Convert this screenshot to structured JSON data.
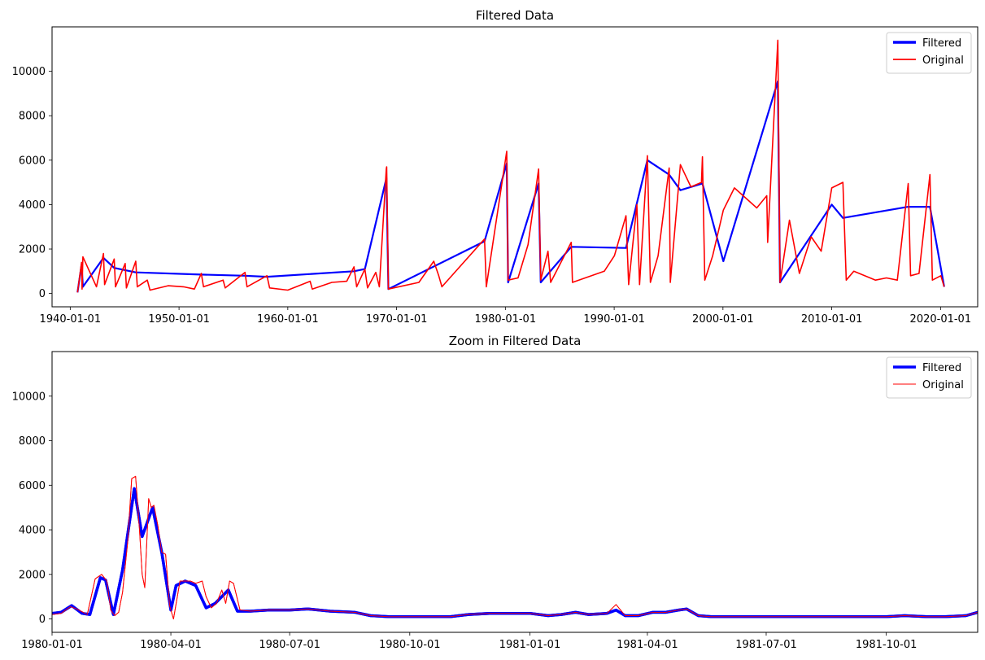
{
  "chart_data": [
    {
      "type": "line",
      "title": "Filtered Data",
      "xlabel": "",
      "ylabel": "",
      "x_axis": "date",
      "xlim": [
        "1938-05-01",
        "2023-06-01"
      ],
      "ylim": [
        -600,
        12000
      ],
      "xticks": [
        "1940-01-01",
        "1950-01-01",
        "1960-01-01",
        "1970-01-01",
        "1980-01-01",
        "1990-01-01",
        "2000-01-01",
        "2010-01-01",
        "2020-01-01"
      ],
      "yticks": [
        0,
        2000,
        4000,
        6000,
        8000,
        10000
      ],
      "legend": {
        "placement": "top-right"
      },
      "series": [
        {
          "name": "Original",
          "color": "#ff0000",
          "x": [
            "1940-09-01",
            "1941-01-15",
            "1941-02-01",
            "1941-03-01",
            "1942-06-01",
            "1943-01-20",
            "1943-03-01",
            "1944-01-15",
            "1944-03-01",
            "1945-01-20",
            "1945-03-01",
            "1946-01-10",
            "1946-03-01",
            "1947-02-01",
            "1947-05-01",
            "1949-01-01",
            "1950-06-01",
            "1951-06-01",
            "1952-01-20",
            "1952-04-01",
            "1954-01-20",
            "1954-04-01",
            "1956-01-25",
            "1956-04-01",
            "1958-02-01",
            "1958-05-01",
            "1960-01-01",
            "1962-01-20",
            "1962-04-01",
            "1964-01-20",
            "1965-06-01",
            "1966-02-01",
            "1966-05-01",
            "1967-02-01",
            "1967-05-01",
            "1968-02-01",
            "1968-06-01",
            "1969-01-20",
            "1969-02-01",
            "1969-04-01",
            "1972-01-20",
            "1973-06-01",
            "1973-11-15",
            "1974-03-01",
            "1978-02-01",
            "1978-04-01",
            "1980-02-15",
            "1980-04-01",
            "1981-03-01",
            "1982-02-01",
            "1983-01-20",
            "1983-04-01",
            "1983-12-01",
            "1984-03-01",
            "1986-01-20",
            "1986-03-01",
            "1989-02-01",
            "1990-01-10",
            "1991-02-01",
            "1991-05-01",
            "1992-02-01",
            "1992-05-01",
            "1993-01-20",
            "1993-05-01",
            "1994-01-15",
            "1995-01-20",
            "1995-03-01",
            "1996-02-01",
            "1997-01-20",
            "1998-01-10",
            "1998-02-10",
            "1998-05-01",
            "1999-01-20",
            "2000-01-15",
            "2001-01-20",
            "2003-02-10",
            "2004-01-10",
            "2004-02-10",
            "2005-01-15",
            "2005-04-01",
            "2006-02-10",
            "2007-01-10",
            "2008-02-10",
            "2009-01-10",
            "2010-01-01",
            "2011-01-10",
            "2011-05-01",
            "2012-01-10",
            "2014-01-10",
            "2015-01-10",
            "2016-01-10",
            "2017-01-10",
            "2017-04-01",
            "2018-01-10",
            "2019-01-10",
            "2019-04-01",
            "2020-01-10",
            "2020-05-01"
          ],
          "values": [
            50,
            1400,
            200,
            1650,
            300,
            1800,
            400,
            1550,
            300,
            1350,
            250,
            1450,
            300,
            600,
            150,
            350,
            300,
            200,
            900,
            300,
            600,
            250,
            950,
            300,
            800,
            250,
            150,
            550,
            200,
            500,
            550,
            1200,
            300,
            1100,
            250,
            950,
            300,
            5600,
            5700,
            200,
            500,
            1450,
            800,
            300,
            2450,
            300,
            6400,
            600,
            700,
            2200,
            5600,
            600,
            1900,
            500,
            2300,
            500,
            1000,
            1700,
            3500,
            400,
            4000,
            400,
            6200,
            500,
            1700,
            5650,
            500,
            5800,
            4800,
            5000,
            6150,
            600,
            1700,
            3750,
            4750,
            3850,
            4400,
            2300,
            11400,
            500,
            3300,
            900,
            2550,
            1900,
            4750,
            5000,
            600,
            1000,
            600,
            700,
            600,
            4950,
            800,
            900,
            5350,
            600,
            800,
            300
          ]
        },
        {
          "name": "Filtered",
          "color": "#0000ff",
          "x": [
            "1940-09-01",
            "1941-01-15",
            "1941-03-01",
            "1943-01-20",
            "1944-01-15",
            "1946-01-10",
            "1952-01-20",
            "1956-01-25",
            "1958-02-01",
            "1966-02-01",
            "1967-02-01",
            "1969-01-25",
            "1969-04-01",
            "1978-02-01",
            "1980-02-15",
            "1980-04-01",
            "1983-01-20",
            "1983-04-01",
            "1986-01-20",
            "1991-02-01",
            "1993-01-20",
            "1995-01-20",
            "1996-02-01",
            "1998-02-10",
            "2000-01-15",
            "2005-01-15",
            "2005-04-01",
            "2010-01-01",
            "2011-01-10",
            "2017-01-10",
            "2019-01-10",
            "2020-05-01"
          ],
          "values": [
            50,
            1300,
            300,
            1600,
            1150,
            950,
            850,
            800,
            750,
            1000,
            1100,
            5200,
            200,
            2350,
            5850,
            500,
            4950,
            500,
            2100,
            2050,
            6000,
            5350,
            4650,
            4950,
            1450,
            9550,
            500,
            4000,
            3400,
            3900,
            3900,
            300
          ]
        }
      ]
    },
    {
      "type": "line",
      "title": "Zoom in Filtered Data",
      "xlabel": "",
      "ylabel": "",
      "x_axis": "date",
      "xlim": [
        "1980-01-01",
        "1981-12-10"
      ],
      "ylim": [
        -600,
        12000
      ],
      "xticks": [
        "1980-01-01",
        "1980-04-01",
        "1980-07-01",
        "1980-10-01",
        "1981-01-01",
        "1981-04-01",
        "1981-07-01",
        "1981-10-01"
      ],
      "yticks": [
        0,
        2000,
        4000,
        6000,
        8000,
        10000
      ],
      "legend": {
        "placement": "top-right"
      },
      "series": [
        {
          "name": "Original",
          "color": "#ff0000",
          "x": [
            "1980-01-01",
            "1980-01-08",
            "1980-01-15",
            "1980-01-20",
            "1980-01-28",
            "1980-02-03",
            "1980-02-08",
            "1980-02-12",
            "1980-02-15",
            "1980-02-18",
            "1980-02-21",
            "1980-02-24",
            "1980-02-28",
            "1980-03-02",
            "1980-03-05",
            "1980-03-08",
            "1980-03-10",
            "1980-03-12",
            "1980-03-15",
            "1980-03-17",
            "1980-03-19",
            "1980-03-22",
            "1980-03-25",
            "1980-03-28",
            "1980-03-31",
            "1980-04-03",
            "1980-04-08",
            "1980-04-12",
            "1980-04-16",
            "1980-04-20",
            "1980-04-25",
            "1980-04-28",
            "1980-05-02",
            "1980-05-06",
            "1980-05-10",
            "1980-05-13",
            "1980-05-16",
            "1980-05-19",
            "1980-05-24",
            "1980-06-01",
            "1980-06-15",
            "1980-07-01",
            "1980-07-15",
            "1980-08-01",
            "1980-08-20",
            "1980-09-01",
            "1980-09-15",
            "1980-10-01",
            "1980-10-15",
            "1980-11-01",
            "1980-11-15",
            "1980-12-01",
            "1980-12-15",
            "1981-01-01",
            "1981-01-15",
            "1981-01-25",
            "1981-02-05",
            "1981-02-15",
            "1981-03-01",
            "1981-03-08",
            "1981-03-15",
            "1981-03-25",
            "1981-04-05",
            "1981-04-15",
            "1981-04-25",
            "1981-05-01",
            "1981-05-10",
            "1981-05-20",
            "1981-06-01",
            "1981-06-15",
            "1981-07-01",
            "1981-07-15",
            "1981-08-01",
            "1981-08-15",
            "1981-09-01",
            "1981-09-15",
            "1981-10-01",
            "1981-10-15",
            "1981-11-01",
            "1981-11-15",
            "1981-12-01",
            "1981-12-10"
          ],
          "values": [
            200,
            250,
            550,
            450,
            200,
            1800,
            2000,
            1700,
            400,
            150,
            300,
            1200,
            3500,
            6300,
            6400,
            4000,
            2000,
            1400,
            5400,
            5000,
            5100,
            4200,
            3000,
            2900,
            600,
            0,
            1700,
            1700,
            1700,
            1600,
            1700,
            1000,
            500,
            700,
            1300,
            700,
            1700,
            1600,
            400,
            350,
            400,
            400,
            450,
            350,
            300,
            150,
            100,
            100,
            100,
            100,
            200,
            250,
            250,
            250,
            150,
            200,
            300,
            200,
            250,
            650,
            150,
            150,
            300,
            300,
            400,
            450,
            150,
            100,
            100,
            100,
            100,
            100,
            100,
            100,
            100,
            100,
            100,
            150,
            100,
            100,
            150,
            300
          ]
        },
        {
          "name": "Filtered",
          "color": "#0000ff",
          "x": [
            "1980-01-01",
            "1980-01-08",
            "1980-01-16",
            "1980-01-24",
            "1980-01-30",
            "1980-02-07",
            "1980-02-11",
            "1980-02-17",
            "1980-02-24",
            "1980-03-04",
            "1980-03-10",
            "1980-03-18",
            "1980-03-25",
            "1980-04-01",
            "1980-04-05",
            "1980-04-12",
            "1980-04-20",
            "1980-04-28",
            "1980-05-05",
            "1980-05-15",
            "1980-05-22",
            "1980-06-01",
            "1980-06-15",
            "1980-07-01",
            "1980-07-15",
            "1980-08-01",
            "1980-08-20",
            "1980-09-01",
            "1980-09-15",
            "1980-10-01",
            "1980-10-15",
            "1980-11-01",
            "1980-11-15",
            "1980-12-01",
            "1980-12-15",
            "1981-01-01",
            "1981-01-15",
            "1981-01-25",
            "1981-02-05",
            "1981-02-15",
            "1981-03-01",
            "1981-03-08",
            "1981-03-15",
            "1981-03-25",
            "1981-04-05",
            "1981-04-15",
            "1981-04-25",
            "1981-05-01",
            "1981-05-10",
            "1981-05-20",
            "1981-06-01",
            "1981-06-15",
            "1981-07-01",
            "1981-07-15",
            "1981-08-01",
            "1981-08-15",
            "1981-09-01",
            "1981-09-15",
            "1981-10-01",
            "1981-10-15",
            "1981-11-01",
            "1981-11-15",
            "1981-12-01",
            "1981-12-10"
          ],
          "values": [
            250,
            300,
            600,
            250,
            200,
            1850,
            1750,
            200,
            2200,
            5850,
            3700,
            5000,
            3000,
            400,
            1500,
            1700,
            1500,
            500,
            700,
            1300,
            350,
            350,
            400,
            400,
            450,
            350,
            300,
            150,
            100,
            100,
            100,
            100,
            200,
            250,
            250,
            250,
            150,
            200,
            300,
            200,
            250,
            400,
            150,
            150,
            300,
            300,
            400,
            450,
            150,
            100,
            100,
            100,
            100,
            100,
            100,
            100,
            100,
            100,
            100,
            150,
            100,
            100,
            150,
            300
          ]
        }
      ]
    }
  ]
}
